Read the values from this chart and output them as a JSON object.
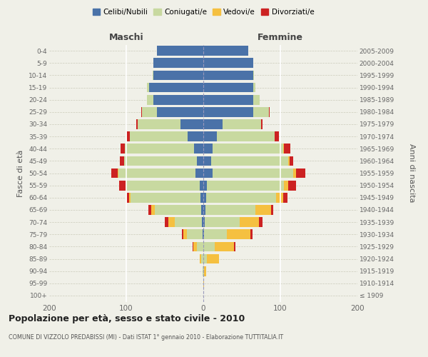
{
  "age_groups": [
    "100+",
    "95-99",
    "90-94",
    "85-89",
    "80-84",
    "75-79",
    "70-74",
    "65-69",
    "60-64",
    "55-59",
    "50-54",
    "45-49",
    "40-44",
    "35-39",
    "30-34",
    "25-29",
    "20-24",
    "15-19",
    "10-14",
    "5-9",
    "0-4"
  ],
  "birth_years": [
    "≤ 1909",
    "1910-1914",
    "1915-1919",
    "1920-1924",
    "1925-1929",
    "1930-1934",
    "1935-1939",
    "1940-1944",
    "1945-1949",
    "1950-1954",
    "1955-1959",
    "1960-1964",
    "1965-1969",
    "1970-1974",
    "1975-1979",
    "1980-1984",
    "1985-1989",
    "1990-1994",
    "1995-1999",
    "2000-2004",
    "2005-2009"
  ],
  "maschi": {
    "celibi": [
      0,
      0,
      0,
      0,
      0,
      1,
      2,
      3,
      4,
      5,
      10,
      8,
      12,
      20,
      30,
      60,
      65,
      70,
      65,
      65,
      60
    ],
    "coniugati": [
      0,
      0,
      1,
      3,
      8,
      20,
      35,
      60,
      90,
      95,
      100,
      95,
      90,
      75,
      55,
      20,
      8,
      3,
      1,
      0,
      0
    ],
    "vedovi": [
      0,
      0,
      0,
      2,
      5,
      5,
      8,
      5,
      2,
      1,
      1,
      0,
      0,
      0,
      0,
      0,
      0,
      0,
      0,
      0,
      0
    ],
    "divorziati": [
      0,
      0,
      0,
      0,
      1,
      2,
      5,
      3,
      3,
      8,
      8,
      5,
      5,
      4,
      2,
      1,
      0,
      0,
      0,
      0,
      0
    ]
  },
  "femmine": {
    "nubili": [
      0,
      0,
      0,
      0,
      0,
      1,
      2,
      3,
      4,
      5,
      12,
      10,
      12,
      18,
      25,
      65,
      65,
      65,
      65,
      65,
      58
    ],
    "coniugate": [
      0,
      0,
      1,
      5,
      15,
      30,
      45,
      65,
      90,
      100,
      105,
      100,
      92,
      75,
      50,
      20,
      8,
      3,
      1,
      0,
      0
    ],
    "vedove": [
      0,
      1,
      3,
      15,
      25,
      30,
      25,
      20,
      10,
      5,
      3,
      2,
      1,
      0,
      0,
      0,
      0,
      0,
      0,
      0,
      0
    ],
    "divorziate": [
      0,
      0,
      0,
      0,
      2,
      3,
      5,
      3,
      5,
      10,
      12,
      5,
      8,
      5,
      2,
      1,
      0,
      0,
      0,
      0,
      0
    ]
  },
  "colors": {
    "celibi": "#4a72a8",
    "coniugati": "#c8d9a0",
    "vedovi": "#f5c040",
    "divorziati": "#cc2222"
  },
  "xlim": 200,
  "title": "Popolazione per età, sesso e stato civile - 2010",
  "subtitle": "COMUNE DI VIZZOLO PREDABISSI (MI) - Dati ISTAT 1° gennaio 2010 - Elaborazione TUTTITALIA.IT",
  "ylabel_left": "Fasce di età",
  "ylabel_right": "Anni di nascita",
  "xlabel_left": "Maschi",
  "xlabel_right": "Femmine",
  "legend_labels": [
    "Celibi/Nubili",
    "Coniugati/e",
    "Vedovi/e",
    "Divorziati/e"
  ],
  "bg_color": "#f0f0e8"
}
